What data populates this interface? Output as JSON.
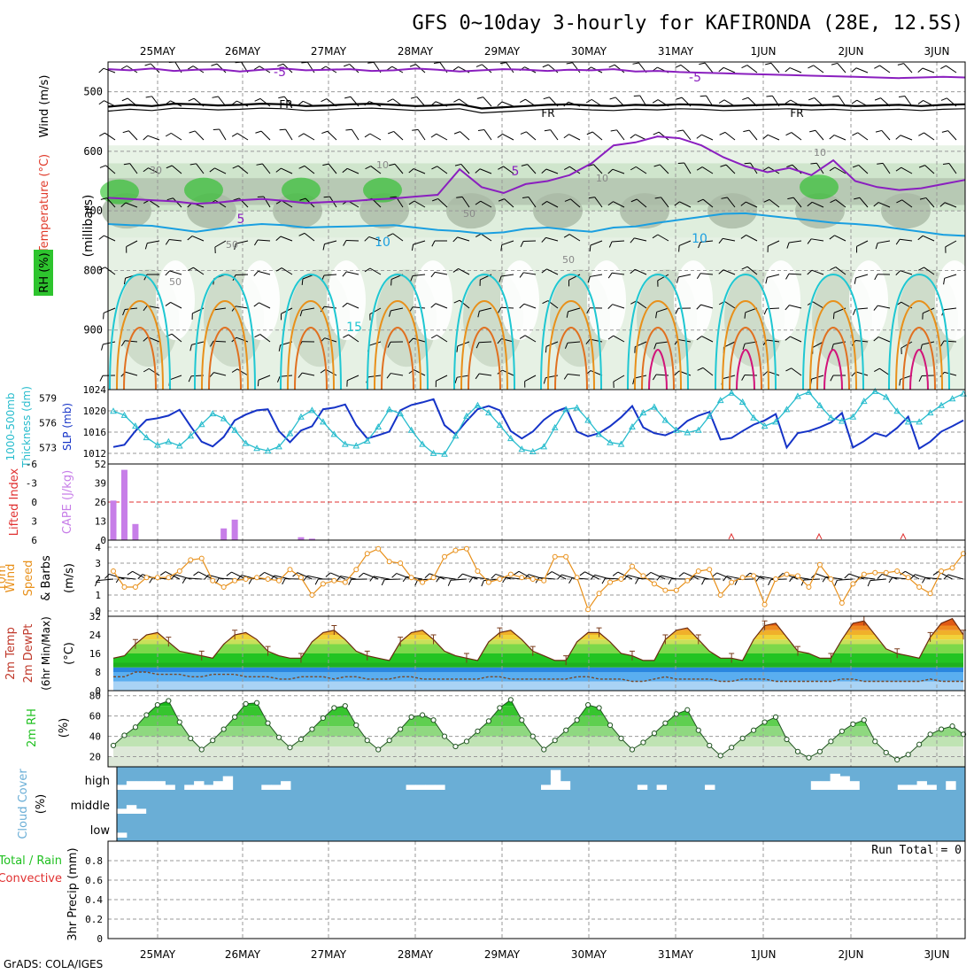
{
  "page": {
    "title": "GFS 0~10day 3-hourly for KAFIRONDA (28E, 12.5S)",
    "credit": "GrADS: COLA/IGES"
  },
  "colors": {
    "temp_contour": "#8a1fbf",
    "temp_warm_contour": "#1a9fe0",
    "temp_cyan": "#1fc7d2",
    "temp_orange": "#e8901a",
    "temp_magenta": "#d2147a",
    "slp": "#1533c7",
    "thickness": "#27bccd",
    "cape": "#c77ee8",
    "lifted_index": "#e03030",
    "wind10m": "#e8901a",
    "rh_dark": "#1fc01f",
    "cloud_bg": "#6aaed6",
    "grid": "#999999"
  },
  "chart_data": [
    {
      "panel": "upper_air",
      "type": "heatmap",
      "labels": {
        "wind": "Wind (m/s)",
        "temperature": "Temperature (°C)",
        "rh": "RH (%)",
        "pressure": "(millibars)"
      },
      "ylim": [
        1000,
        450
      ],
      "yticks": [
        500,
        600,
        700,
        800,
        900
      ],
      "contour_labels": [
        "-5",
        "FR",
        "5",
        "10",
        "30",
        "50",
        "15"
      ],
      "x_dates": [
        "25MAY",
        "26MAY",
        "27MAY",
        "28MAY",
        "29MAY",
        "30MAY",
        "31MAY",
        "1JUN",
        "2JUN",
        "3JUN"
      ],
      "temp_levels": {
        "m5": [
          462,
          464,
          461,
          465,
          463,
          462,
          466,
          463,
          461,
          464,
          463,
          462,
          465,
          464,
          461,
          463,
          466,
          464,
          462,
          463,
          465,
          463,
          464,
          462,
          466,
          465,
          467,
          468,
          469,
          470,
          471,
          472,
          473,
          474,
          475,
          476,
          477,
          476,
          475,
          476
        ],
        "fr": [
          525,
          522,
          524,
          520,
          521,
          523,
          522,
          520,
          521,
          524,
          523,
          521,
          520,
          522,
          524,
          523,
          521,
          528,
          526,
          524,
          522,
          521,
          523,
          524,
          522,
          523,
          521,
          522,
          524,
          523,
          522,
          521,
          523,
          522,
          524,
          523,
          522,
          524,
          522,
          521
        ],
        "p5": [
          678,
          680,
          682,
          684,
          688,
          686,
          682,
          680,
          683,
          687,
          685,
          684,
          681,
          679,
          676,
          673,
          630,
          660,
          670,
          655,
          650,
          640,
          620,
          590,
          585,
          575,
          578,
          590,
          610,
          625,
          635,
          628,
          640,
          615,
          650,
          660,
          665,
          662,
          655,
          648
        ],
        "p10": [
          722,
          724,
          725,
          730,
          735,
          730,
          725,
          722,
          724,
          728,
          727,
          726,
          725,
          724,
          728,
          732,
          734,
          738,
          736,
          730,
          728,
          732,
          735,
          728,
          726,
          720,
          715,
          710,
          705,
          704,
          708,
          712,
          716,
          720,
          722,
          725,
          730,
          735,
          740,
          742
        ]
      }
    },
    {
      "panel": "slp_thickness",
      "type": "line",
      "labels": {
        "thickness": "1000-500mb Thickness (dm)",
        "slp": "SLP (mb)"
      },
      "ylim_slp": [
        1010,
        1024
      ],
      "yticks_slp": [
        1012,
        1016,
        1020,
        1024
      ],
      "ylim_thk": [
        571,
        580
      ],
      "yticks_thk": [
        573,
        576,
        579
      ],
      "series": [
        {
          "name": "SLP",
          "values": [
            1013.2,
            1013.6,
            1016.2,
            1018.3,
            1018.6,
            1019.1,
            1020.2,
            1017.1,
            1014.2,
            1013.3,
            1015.1,
            1018.2,
            1019.3,
            1020.1,
            1020.3,
            1016.2,
            1014.1,
            1016.3,
            1017.1,
            1020.3,
            1020.6,
            1021.2,
            1017.3,
            1014.8,
            1015.4,
            1016.1,
            1020.1,
            1021.1,
            1021.6,
            1022.2,
            1017.3,
            1015.6,
            1018.1,
            1020.3,
            1020.9,
            1020.1,
            1016.2,
            1014.8,
            1016.1,
            1018.3,
            1019.8,
            1020.6,
            1016.1,
            1015.2,
            1015.8,
            1017.1,
            1018.8,
            1020.9,
            1016.9,
            1015.8,
            1015.4,
            1016.3,
            1018.1,
            1019.1,
            1019.8,
            1014.6,
            1014.9,
            1016.2,
            1017.4,
            1018.2,
            1019.4,
            1013.1,
            1015.8,
            1016.2,
            1016.9,
            1017.8,
            1019.6,
            1013.1,
            1014.3,
            1015.8,
            1015.2,
            1016.8,
            1018.9,
            1012.9,
            1014.2,
            1016.1,
            1017.1,
            1018.2
          ]
        },
        {
          "name": "Thickness",
          "values": [
            577.4,
            576.9,
            575.6,
            574.2,
            573.3,
            573.7,
            573.2,
            574.4,
            575.8,
            577.1,
            576.5,
            575.1,
            573.5,
            572.9,
            572.6,
            573.1,
            574.7,
            576.7,
            577.5,
            576.1,
            574.6,
            573.4,
            573.2,
            573.8,
            575.5,
            577.6,
            577.1,
            575.1,
            573.4,
            572.3,
            572.2,
            574.4,
            576.8,
            578.1,
            577.2,
            575.7,
            574.1,
            572.8,
            572.5,
            573.1,
            575.4,
            577.6,
            577.8,
            576.3,
            574.6,
            573.6,
            573.4,
            575.5,
            577.2,
            577.9,
            576.3,
            575.1,
            574.8,
            575.1,
            576.8,
            578.7,
            579.6,
            578.5,
            576.6,
            575.6,
            576.1,
            577.6,
            579.2,
            579.7,
            578.1,
            576.6,
            576.2,
            576.7,
            578.6,
            579.8,
            579.1,
            577.4,
            576.1,
            576.1,
            577.2,
            578.1,
            578.9,
            579.5
          ]
        }
      ]
    },
    {
      "panel": "cape_li",
      "type": "bar",
      "labels": {
        "li": "Lifted Index",
        "cape": "CAPE (J/kg)"
      },
      "ylim_cape": [
        0,
        52
      ],
      "yticks_cape": [
        0,
        13,
        26,
        39,
        52
      ],
      "yticks_li": [
        6,
        3,
        0,
        -3,
        -6
      ],
      "series": [
        {
          "name": "CAPE",
          "values": [
            27,
            48,
            11,
            0,
            0,
            0,
            0,
            0,
            0,
            0,
            8,
            14,
            0,
            0,
            0,
            0,
            0,
            2,
            1,
            0,
            0,
            0,
            0,
            0,
            0,
            0,
            0,
            0,
            0,
            0,
            0,
            0,
            0,
            0,
            0,
            0,
            0,
            0,
            0,
            0,
            0,
            0,
            0,
            0,
            0,
            0,
            0,
            0,
            0,
            0,
            0,
            0,
            0,
            0,
            0,
            0,
            0,
            0,
            0,
            0,
            0,
            0,
            0,
            0,
            0,
            0,
            0,
            0,
            0,
            0,
            0,
            0,
            0,
            0,
            0,
            0,
            0,
            0
          ]
        }
      ]
    },
    {
      "panel": "wind10m",
      "type": "line",
      "labels": {
        "main": "10m Wind Speed & Barbs",
        "unit": "(m/s)"
      },
      "ylim": [
        0,
        4
      ],
      "yticks": [
        0,
        1,
        2,
        3,
        4
      ],
      "series": [
        {
          "name": "Speed",
          "values": [
            2.5,
            1.5,
            1.5,
            2.1,
            2.1,
            2.1,
            2.5,
            3.2,
            3.3,
            1.9,
            1.5,
            1.9,
            2.0,
            2.1,
            2.0,
            1.9,
            2.6,
            2.1,
            1.0,
            1.7,
            1.9,
            1.8,
            2.6,
            3.6,
            3.9,
            3.1,
            3.0,
            2.1,
            1.8,
            2.1,
            3.4,
            3.8,
            3.9,
            2.5,
            1.8,
            2.0,
            2.3,
            2.1,
            2.0,
            1.9,
            3.4,
            3.4,
            2.1,
            0.1,
            1.1,
            1.8,
            2.0,
            2.8,
            2.2,
            1.7,
            1.3,
            1.3,
            1.9,
            2.5,
            2.6,
            1.0,
            1.8,
            2.1,
            2.2,
            0.4,
            2.0,
            2.3,
            2.2,
            1.5,
            2.9,
            2.0,
            0.5,
            1.7,
            2.3,
            2.4,
            2.4,
            2.5,
            2.1,
            1.5,
            1.1,
            2.5,
            2.7,
            3.6
          ]
        }
      ]
    },
    {
      "panel": "temp2m",
      "type": "area",
      "labels": {
        "main": "2m Temp 2m DewPt (6hr Min/Max)",
        "unit": "(°C)"
      },
      "ylim": [
        0,
        32
      ],
      "yticks": [
        0,
        8,
        16,
        24,
        32
      ],
      "series": [
        {
          "name": "Temp",
          "values": [
            14,
            15,
            20,
            24,
            25,
            21,
            17,
            16,
            15,
            14,
            20,
            24,
            25,
            22,
            17,
            15,
            14,
            14,
            21,
            25,
            26,
            22,
            17,
            15,
            14,
            13,
            21,
            25,
            26,
            22,
            17,
            15,
            14,
            13,
            21,
            25,
            26,
            22,
            17,
            15,
            13,
            13,
            21,
            25,
            25,
            21,
            16,
            15,
            13,
            13,
            22,
            26,
            27,
            22,
            17,
            14,
            14,
            13,
            22,
            28,
            29,
            23,
            17,
            16,
            14,
            14,
            22,
            29,
            30,
            24,
            18,
            16,
            15,
            14,
            23,
            29,
            31,
            24
          ]
        },
        {
          "name": "DewPt",
          "values": [
            6,
            6,
            8,
            8,
            7,
            7,
            7,
            6,
            6,
            7,
            7,
            7,
            6,
            6,
            6,
            5,
            5,
            6,
            6,
            6,
            5,
            6,
            6,
            5,
            5,
            5,
            6,
            6,
            5,
            5,
            5,
            5,
            5,
            5,
            6,
            6,
            5,
            5,
            5,
            5,
            5,
            5,
            6,
            6,
            5,
            5,
            5,
            4,
            4,
            5,
            6,
            5,
            5,
            5,
            5,
            4,
            4,
            5,
            5,
            5,
            4,
            4,
            4,
            4,
            4,
            4,
            5,
            5,
            4,
            4,
            4,
            4,
            4,
            4,
            5,
            4,
            4,
            4
          ]
        }
      ]
    },
    {
      "panel": "rh2m",
      "type": "area",
      "labels": {
        "main": "2m RH",
        "unit": "(%)"
      },
      "ylim": [
        10,
        85
      ],
      "yticks": [
        20,
        40,
        60,
        80
      ],
      "series": [
        {
          "name": "RH",
          "values": [
            31,
            41,
            49,
            61,
            71,
            75,
            54,
            38,
            27,
            36,
            47,
            59,
            72,
            73,
            53,
            39,
            29,
            37,
            47,
            58,
            68,
            70,
            51,
            36,
            27,
            36,
            47,
            59,
            61,
            56,
            40,
            30,
            35,
            45,
            55,
            68,
            76,
            56,
            40,
            27,
            36,
            46,
            56,
            71,
            68,
            51,
            38,
            27,
            34,
            43,
            53,
            62,
            66,
            46,
            31,
            21,
            29,
            38,
            46,
            54,
            59,
            37,
            25,
            19,
            25,
            35,
            45,
            52,
            56,
            35,
            24,
            17,
            22,
            32,
            42,
            47,
            50,
            42
          ]
        }
      ]
    },
    {
      "panel": "cloud",
      "type": "bar",
      "labels": {
        "main": "Cloud Cover",
        "unit": "(%)",
        "high": "high",
        "middle": "middle",
        "low": "low"
      },
      "series": [
        {
          "name": "high",
          "values": [
            0.2,
            0.35,
            0.35,
            0.35,
            0.35,
            0.2,
            0,
            0.2,
            0.35,
            0.2,
            0.35,
            0.55,
            0,
            0,
            0,
            0.2,
            0.2,
            0.35,
            0,
            0,
            0,
            0,
            0,
            0,
            0,
            0,
            0,
            0,
            0,
            0,
            0.2,
            0.2,
            0.2,
            0.2,
            0,
            0,
            0,
            0,
            0,
            0,
            0,
            0,
            0,
            0,
            0.2,
            0.8,
            0.35,
            0,
            0,
            0,
            0,
            0,
            0,
            0,
            0.2,
            0,
            0.2,
            0,
            0,
            0,
            0,
            0.2,
            0,
            0,
            0,
            0,
            0,
            0,
            0,
            0,
            0,
            0,
            0.35,
            0.35,
            0.65,
            0.55,
            0.35,
            0,
            0,
            0,
            0,
            0.2,
            0.2,
            0.35,
            0.2,
            0,
            0.35
          ]
        },
        {
          "name": "middle",
          "values": [
            0.2,
            0.35,
            0.2
          ]
        },
        {
          "name": "low",
          "values": [
            0.2
          ]
        }
      ]
    },
    {
      "panel": "precip",
      "type": "bar",
      "labels": {
        "main1": "Total / Rain",
        "main2": "Convective",
        "unit": "3hr Precip (mm)",
        "run_total": "Run Total = 0"
      },
      "ylim": [
        0,
        1
      ],
      "yticks": [
        "0",
        "0.2",
        "0.4",
        "0.6",
        "0.8"
      ],
      "series": [
        {
          "name": "Precip",
          "values": []
        }
      ]
    }
  ]
}
